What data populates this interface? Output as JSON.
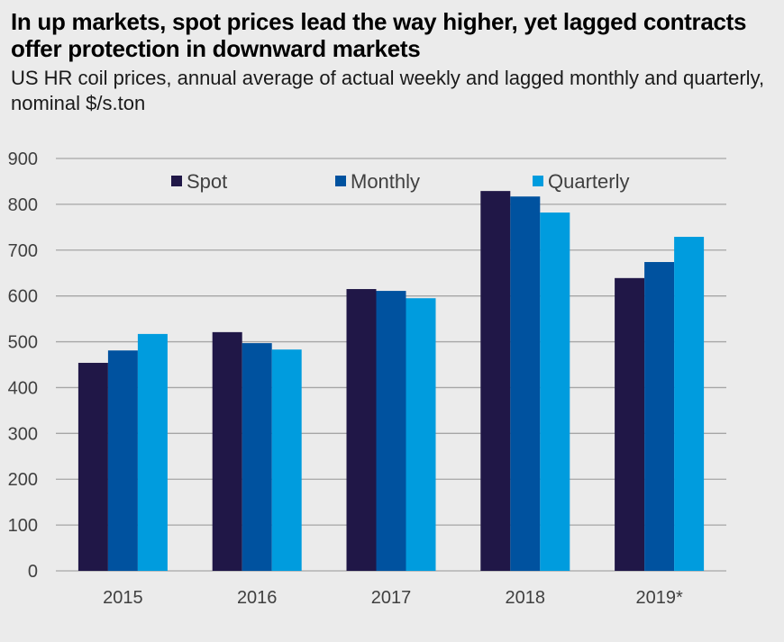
{
  "chart_data": {
    "type": "bar",
    "title": "In up markets, spot prices lead the way higher, yet lagged contracts offer protection in downward markets",
    "subtitle": "US HR coil prices, annual average of actual weekly and lagged monthly and quarterly, nominal $/s.ton",
    "xlabel": "",
    "ylabel": "",
    "categories": [
      "2015",
      "2016",
      "2017",
      "2018",
      "2019*"
    ],
    "series": [
      {
        "name": "Spot",
        "color": "#201747",
        "values": [
          454,
          521,
          615,
          829,
          639
        ]
      },
      {
        "name": "Monthly",
        "color": "#00529f",
        "values": [
          481,
          497,
          611,
          817,
          674
        ]
      },
      {
        "name": "Quarterly",
        "color": "#009cde",
        "values": [
          517,
          483,
          595,
          782,
          729
        ]
      }
    ],
    "ylim": [
      0,
      900
    ],
    "yticks": [
      "0",
      "100",
      "200",
      "300",
      "400",
      "500",
      "600",
      "700",
      "800",
      "900"
    ],
    "grid": true,
    "legend_position": "top"
  }
}
